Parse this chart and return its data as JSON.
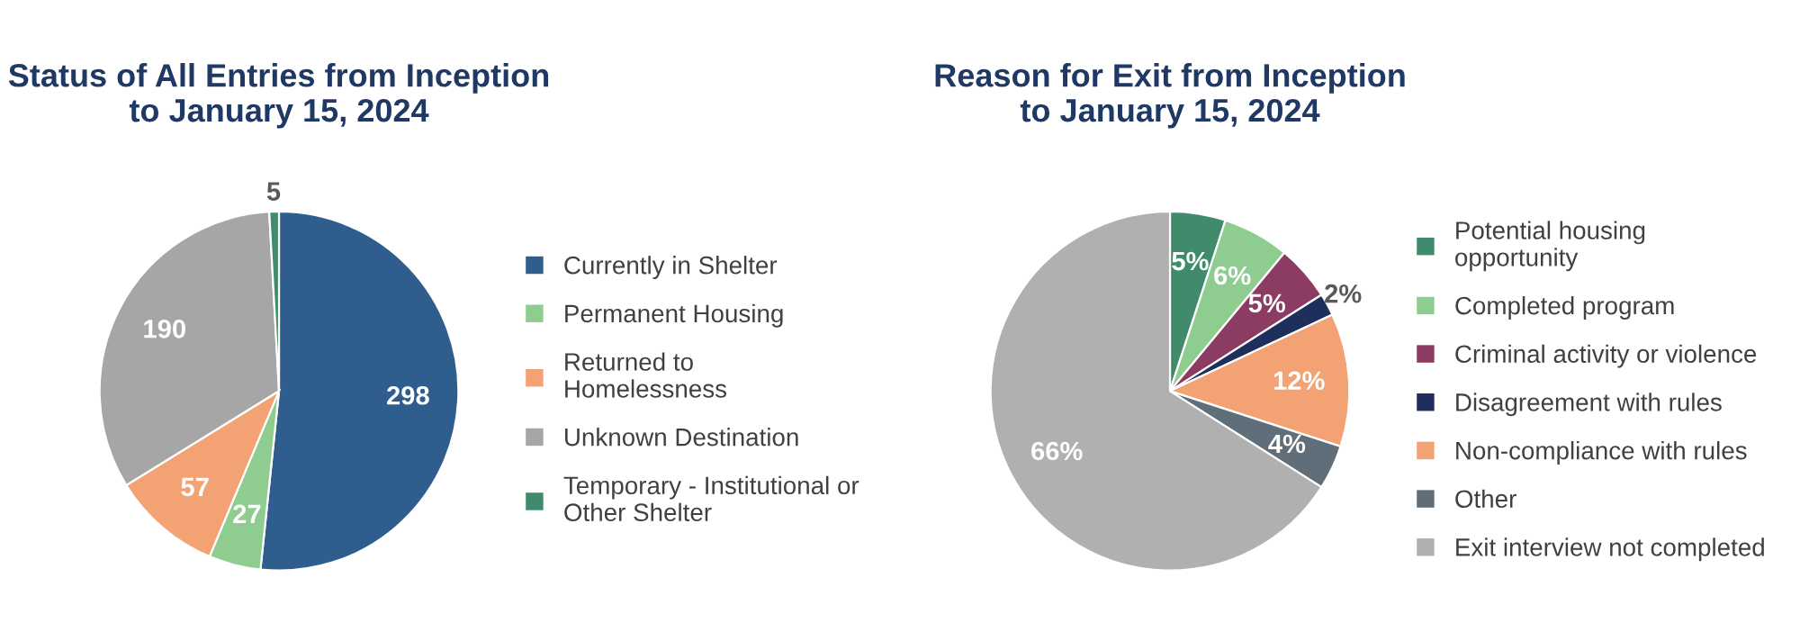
{
  "chart_data": [
    {
      "type": "pie",
      "title": "Status of All Entries from Inception\nto January 15, 2024",
      "categories": [
        "Currently in Shelter",
        "Permanent Housing",
        "Returned to\nHomelessness",
        "Unknown Destination",
        "Temporary - Institutional or\nOther Shelter"
      ],
      "values": [
        298,
        27,
        57,
        190,
        5
      ],
      "colors": [
        "#2e5d8e",
        "#8fcc8f",
        "#f2a273",
        "#a6a6a6",
        "#3f8b6b"
      ],
      "data_labels": true,
      "legend": "right"
    },
    {
      "type": "pie",
      "title": "Reason for Exit from Inception\nto January 15, 2024",
      "categories": [
        "Potential housing\nopportunity",
        "Completed program",
        "Criminal activity or violence",
        "Disagreement with rules",
        "Non-compliance with rules",
        "Other",
        "Exit interview not completed"
      ],
      "values": [
        5,
        6,
        5,
        2,
        12,
        4,
        66
      ],
      "value_labels": [
        "5%",
        "6%",
        "5%",
        "2%",
        "12%",
        "4%",
        "66%"
      ],
      "colors": [
        "#3f8b6b",
        "#8fcc8f",
        "#8c3b63",
        "#1f2f5c",
        "#f2a273",
        "#5f6e78",
        "#b0b0b0"
      ],
      "legend": "right"
    }
  ]
}
